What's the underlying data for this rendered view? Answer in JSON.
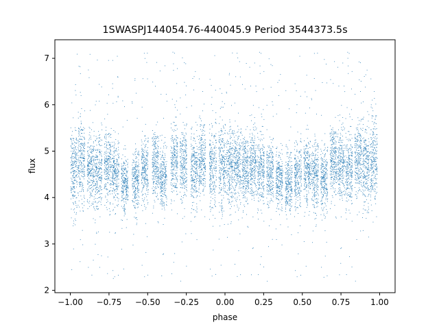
{
  "chart_data": {
    "type": "scatter",
    "title": "1SWASPJ144054.76-440045.9 Period 3544373.5s",
    "xlabel": "phase",
    "ylabel": "flux",
    "xlim": [
      -1.1,
      1.1
    ],
    "ylim": [
      1.95,
      7.4
    ],
    "x_ticks": [
      "−1.00",
      "−0.75",
      "−0.50",
      "−0.25",
      "0.00",
      "0.25",
      "0.50",
      "0.75",
      "1.00"
    ],
    "x_tick_values": [
      -1.0,
      -0.75,
      -0.5,
      -0.25,
      0.0,
      0.25,
      0.5,
      0.75,
      1.0
    ],
    "y_ticks": [
      "2",
      "3",
      "4",
      "5",
      "6",
      "7"
    ],
    "y_tick_values": [
      2,
      3,
      4,
      5,
      6,
      7
    ],
    "grid": false,
    "marker_color": "#1f77b4",
    "series": [
      {
        "points_description_range": {
          "x_range": [
            -1.0,
            1.0
          ],
          "typical_flux_range": [
            3.8,
            5.5
          ],
          "max_flux": 7.15,
          "min_flux": 2.2
        },
        "clusters": [
          {
            "x": -0.98,
            "center": 4.6,
            "spread": 0.45
          },
          {
            "x": -0.93,
            "center": 4.8,
            "spread": 0.45
          },
          {
            "x": -0.87,
            "center": 4.6,
            "spread": 0.4
          },
          {
            "x": -0.82,
            "center": 4.5,
            "spread": 0.45
          },
          {
            "x": -0.76,
            "center": 4.7,
            "spread": 0.4
          },
          {
            "x": -0.71,
            "center": 4.5,
            "spread": 0.35
          },
          {
            "x": -0.65,
            "center": 4.3,
            "spread": 0.3
          },
          {
            "x": -0.58,
            "center": 4.4,
            "spread": 0.35
          },
          {
            "x": -0.52,
            "center": 4.6,
            "spread": 0.35
          },
          {
            "x": -0.45,
            "center": 4.7,
            "spread": 0.4
          },
          {
            "x": -0.4,
            "center": 4.4,
            "spread": 0.35
          },
          {
            "x": -0.33,
            "center": 4.8,
            "spread": 0.4
          },
          {
            "x": -0.27,
            "center": 4.7,
            "spread": 0.4
          },
          {
            "x": -0.2,
            "center": 4.6,
            "spread": 0.4
          },
          {
            "x": -0.15,
            "center": 4.8,
            "spread": 0.4
          },
          {
            "x": -0.08,
            "center": 4.7,
            "spread": 0.45
          },
          {
            "x": -0.02,
            "center": 4.7,
            "spread": 0.5
          },
          {
            "x": 0.03,
            "center": 4.7,
            "spread": 0.45
          },
          {
            "x": 0.08,
            "center": 4.7,
            "spread": 0.4
          },
          {
            "x": 0.13,
            "center": 4.6,
            "spread": 0.4
          },
          {
            "x": 0.18,
            "center": 4.7,
            "spread": 0.4
          },
          {
            "x": 0.23,
            "center": 4.6,
            "spread": 0.4
          },
          {
            "x": 0.29,
            "center": 4.5,
            "spread": 0.35
          },
          {
            "x": 0.35,
            "center": 4.4,
            "spread": 0.3
          },
          {
            "x": 0.41,
            "center": 4.3,
            "spread": 0.35
          },
          {
            "x": 0.47,
            "center": 4.5,
            "spread": 0.35
          },
          {
            "x": 0.53,
            "center": 4.6,
            "spread": 0.35
          },
          {
            "x": 0.58,
            "center": 4.5,
            "spread": 0.4
          },
          {
            "x": 0.64,
            "center": 4.4,
            "spread": 0.35
          },
          {
            "x": 0.7,
            "center": 4.8,
            "spread": 0.4
          },
          {
            "x": 0.75,
            "center": 4.7,
            "spread": 0.4
          },
          {
            "x": 0.8,
            "center": 4.6,
            "spread": 0.4
          },
          {
            "x": 0.86,
            "center": 4.8,
            "spread": 0.4
          },
          {
            "x": 0.91,
            "center": 4.7,
            "spread": 0.45
          },
          {
            "x": 0.96,
            "center": 4.8,
            "spread": 0.5
          }
        ]
      }
    ]
  }
}
